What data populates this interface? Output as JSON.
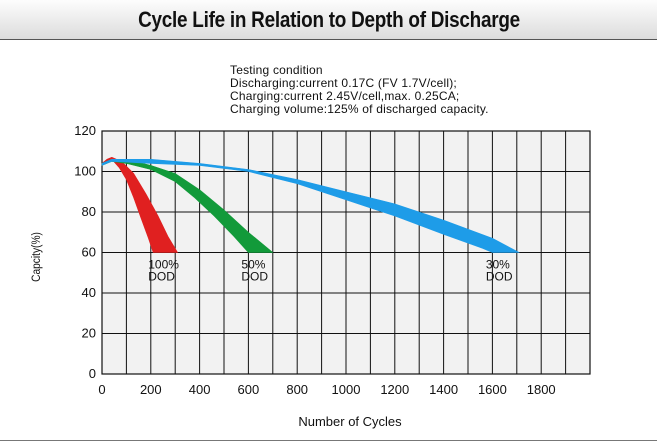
{
  "title": "Cycle Life in Relation to Depth of Discharge",
  "testing_condition": {
    "heading": "Testing condition",
    "lines": [
      "Discharging:current 0.17C (FV 1.7V/cell);",
      "Charging:current 2.45V/cell,max. 0.25CA;",
      "Charging volume:125% of discharged capacity."
    ]
  },
  "chart_data": {
    "type": "area",
    "title": "Cycle Life in Relation to Depth of Discharge",
    "xlabel": "Number of Cycles",
    "ylabel": "Capcity(%)",
    "xlim": [
      0,
      2000
    ],
    "ylim": [
      0,
      120
    ],
    "xticks": [
      "0",
      "200",
      "400",
      "600",
      "800",
      "1000",
      "1200",
      "1400",
      "1600",
      "1800"
    ],
    "yticks": [
      "0",
      "20",
      "40",
      "60",
      "80",
      "100",
      "120"
    ],
    "grid": true,
    "series": [
      {
        "name": "100% DOD",
        "label_lines": [
          "100%",
          "DOD"
        ],
        "color": "#e02020",
        "upper": [
          [
            0,
            104
          ],
          [
            20,
            106
          ],
          [
            40,
            107
          ],
          [
            80,
            105
          ],
          [
            130,
            99
          ],
          [
            180,
            89
          ],
          [
            230,
            78
          ],
          [
            270,
            68
          ],
          [
            310,
            60
          ]
        ],
        "lower": [
          [
            0,
            103
          ],
          [
            20,
            105
          ],
          [
            40,
            106
          ],
          [
            70,
            102
          ],
          [
            100,
            96
          ],
          [
            130,
            87
          ],
          [
            160,
            77
          ],
          [
            190,
            67
          ],
          [
            210,
            60
          ]
        ]
      },
      {
        "name": "50% DOD",
        "label_lines": [
          "50%",
          "DOD"
        ],
        "color": "#129a3a",
        "upper": [
          [
            0,
            104
          ],
          [
            40,
            106
          ],
          [
            100,
            106
          ],
          [
            200,
            103
          ],
          [
            300,
            99
          ],
          [
            400,
            91
          ],
          [
            500,
            81
          ],
          [
            600,
            70
          ],
          [
            700,
            60
          ]
        ],
        "lower": [
          [
            0,
            103
          ],
          [
            40,
            105
          ],
          [
            100,
            104
          ],
          [
            200,
            101
          ],
          [
            300,
            95
          ],
          [
            380,
            87
          ],
          [
            460,
            78
          ],
          [
            540,
            68
          ],
          [
            600,
            60
          ]
        ]
      },
      {
        "name": "30% DOD",
        "label_lines": [
          "30%",
          "DOD"
        ],
        "color": "#1e9ce8",
        "upper": [
          [
            0,
            104
          ],
          [
            40,
            106
          ],
          [
            200,
            106
          ],
          [
            400,
            104
          ],
          [
            600,
            101
          ],
          [
            800,
            96
          ],
          [
            1000,
            90
          ],
          [
            1200,
            84
          ],
          [
            1400,
            76
          ],
          [
            1600,
            67
          ],
          [
            1710,
            60
          ]
        ],
        "lower": [
          [
            0,
            103
          ],
          [
            40,
            105
          ],
          [
            200,
            104
          ],
          [
            400,
            103
          ],
          [
            600,
            100
          ],
          [
            800,
            94
          ],
          [
            1000,
            86
          ],
          [
            1200,
            78
          ],
          [
            1400,
            69
          ],
          [
            1560,
            62
          ],
          [
            1600,
            60
          ]
        ]
      }
    ]
  }
}
